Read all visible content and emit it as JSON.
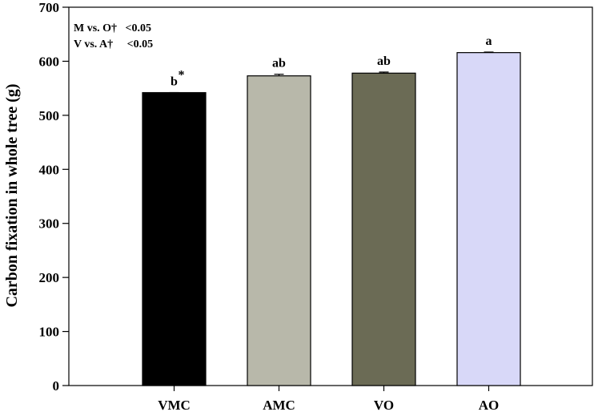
{
  "chart_data": {
    "type": "bar",
    "ylabel": "Carbon fixation in whole tree (g)",
    "xlabel": "",
    "ylim": [
      0,
      700
    ],
    "yticks": [
      0,
      100,
      200,
      300,
      400,
      500,
      600,
      700
    ],
    "grid": false,
    "categories": [
      "VMC",
      "AMC",
      "VO",
      "AO"
    ],
    "values": [
      542,
      573,
      578,
      616
    ],
    "errors": [
      0,
      3,
      2,
      1
    ],
    "bar_colors": [
      "#000000",
      "#b8b8aa",
      "#6b6b55",
      "#d8d8f8"
    ],
    "significance_letters": [
      "b",
      "ab",
      "ab",
      "a"
    ],
    "asterisk_marker": "*",
    "annotations": [
      {
        "text": "M vs. O†   <0.05"
      },
      {
        "text": "V vs. A†     <0.05"
      }
    ]
  }
}
